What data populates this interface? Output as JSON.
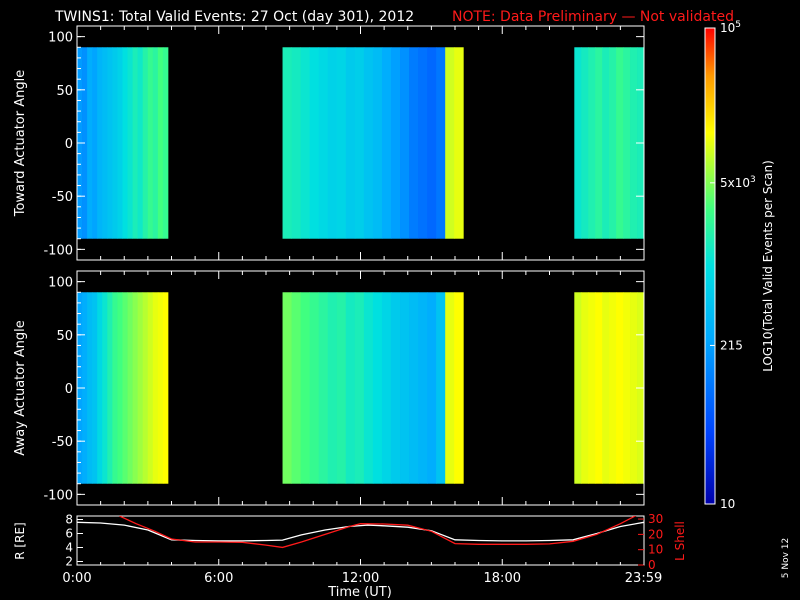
{
  "title": "TWINS1: Total Valid Events: 27 Oct (day 301), 2012",
  "note": "NOTE: Data Preliminary — Not validated",
  "date_stamp": "5 Nov 12",
  "colors": {
    "background": "#000000",
    "axis": "#ffffff",
    "note": "#ff1a1a",
    "l_shell_line": "#ff1a1a",
    "r_line": "#ffffff"
  },
  "colorbar": {
    "label": "LOG10(Total Valid Events per Scan)",
    "tick_labels": [
      "10",
      "215",
      "5x10^3",
      "10^5"
    ],
    "tick_values": [
      10,
      215,
      5000,
      100000
    ],
    "scale": "log",
    "colormap": "blue-cyan-green-yellow-orange-red",
    "range": [
      10,
      100000
    ]
  },
  "chart_data": [
    {
      "type": "heatmap",
      "ylabel": "Toward Actuator Angle",
      "ylim": [
        -110,
        110
      ],
      "y_tick_labels": [
        "100",
        "50",
        "0",
        "-50",
        "-100"
      ],
      "y_tick_values": [
        100,
        50,
        0,
        -50,
        -100
      ],
      "xlim": [
        0,
        24
      ],
      "data_y_range": [
        -90,
        90
      ],
      "log_level_scale": "0 = 10 events, 1 = 10^5 events (log scale)",
      "data_segments": [
        {
          "t_start": 0.0,
          "t_end": 3.85,
          "levels": [
            0.32,
            0.3,
            0.36,
            0.34,
            0.38,
            0.4,
            0.42,
            0.44,
            0.46,
            0.5,
            0.52,
            0.55,
            0.53,
            0.57,
            0.6,
            0.58,
            0.62,
            0.6
          ]
        },
        {
          "t_start": 8.7,
          "t_end": 16.35,
          "levels": [
            0.55,
            0.54,
            0.52,
            0.5,
            0.48,
            0.46,
            0.47,
            0.44,
            0.45,
            0.42,
            0.4,
            0.36,
            0.33,
            0.3,
            0.26,
            0.24,
            0.22,
            0.25,
            0.74,
            0.76
          ]
        },
        {
          "t_start": 21.05,
          "t_end": 24.0,
          "levels": [
            0.52,
            0.54,
            0.56,
            0.58,
            0.55,
            0.57,
            0.6,
            0.58,
            0.56,
            0.55
          ]
        }
      ],
      "gaps": [
        [
          3.85,
          8.7
        ],
        [
          16.35,
          21.05
        ]
      ]
    },
    {
      "type": "heatmap",
      "ylabel": "Away Actuator Angle",
      "ylim": [
        -110,
        110
      ],
      "y_tick_labels": [
        "100",
        "50",
        "0",
        "-50",
        "-100"
      ],
      "y_tick_values": [
        100,
        50,
        0,
        -50,
        -100
      ],
      "xlim": [
        0,
        24
      ],
      "data_y_range": [
        -90,
        90
      ],
      "log_level_scale": "0 = 10 events, 1 = 10^5 events (log scale)",
      "data_segments": [
        {
          "t_start": 0.0,
          "t_end": 3.85,
          "levels": [
            0.34,
            0.36,
            0.4,
            0.42,
            0.48,
            0.52,
            0.56,
            0.6,
            0.62,
            0.64,
            0.66,
            0.68,
            0.7,
            0.72,
            0.74,
            0.76,
            0.77,
            0.78
          ]
        },
        {
          "t_start": 8.7,
          "t_end": 16.35,
          "levels": [
            0.66,
            0.64,
            0.62,
            0.6,
            0.58,
            0.56,
            0.57,
            0.54,
            0.55,
            0.52,
            0.5,
            0.47,
            0.44,
            0.42,
            0.4,
            0.38,
            0.36,
            0.42,
            0.76,
            0.78
          ]
        },
        {
          "t_start": 21.05,
          "t_end": 24.0,
          "levels": [
            0.74,
            0.76,
            0.77,
            0.78,
            0.76,
            0.77,
            0.78,
            0.77,
            0.76,
            0.75
          ]
        }
      ],
      "gaps": [
        [
          3.85,
          8.7
        ],
        [
          16.35,
          21.05
        ]
      ]
    },
    {
      "type": "line",
      "xlabel": "Time (UT)",
      "x_tick_labels": [
        "0:00",
        "6:00",
        "12:00",
        "18:00",
        "23:59"
      ],
      "x_tick_values": [
        0,
        6,
        12,
        18,
        23.98
      ],
      "xlim": [
        0,
        24
      ],
      "left_axis": {
        "label": "R [RE]",
        "ylim": [
          1.5,
          8.5
        ],
        "tick_labels": [
          "2",
          "4",
          "6",
          "8"
        ],
        "tick_values": [
          2,
          4,
          6,
          8
        ]
      },
      "right_axis": {
        "label": "L Shell",
        "ylim": [
          0,
          32
        ],
        "tick_labels": [
          "0",
          "10",
          "20",
          "30"
        ],
        "tick_values": [
          0,
          10,
          20,
          30
        ]
      },
      "series": [
        {
          "name": "R",
          "axis": "left",
          "color": "#ffffff",
          "x": [
            0,
            1,
            2,
            3,
            4,
            5,
            6,
            7,
            8,
            8.7,
            9.5,
            10.5,
            11.5,
            12.3,
            13,
            14,
            15,
            16,
            17,
            18,
            19,
            20,
            21,
            22,
            23,
            24
          ],
          "y": [
            7.6,
            7.5,
            7.2,
            6.5,
            5.1,
            5.0,
            4.95,
            4.95,
            5.0,
            5.05,
            5.8,
            6.5,
            7.0,
            7.2,
            7.1,
            6.9,
            6.4,
            5.1,
            5.0,
            4.95,
            4.95,
            5.0,
            5.1,
            6.0,
            7.0,
            7.6
          ]
        },
        {
          "name": "L Shell",
          "axis": "right",
          "color": "#ff1a1a",
          "x": [
            1.8,
            2.5,
            3.3,
            4.0,
            5.0,
            6.0,
            7.0,
            8.0,
            8.7,
            9.5,
            10.5,
            11.5,
            12.0,
            13.0,
            14.0,
            15.0,
            16.0,
            17.0,
            18.0,
            19.0,
            20.0,
            21.0,
            22.0,
            23.0,
            24.0
          ],
          "y": [
            32,
            27,
            22,
            17,
            15,
            15,
            14.8,
            13,
            11.5,
            15,
            20,
            25,
            27,
            26.8,
            26,
            22,
            14,
            13.5,
            13.5,
            13.5,
            13.8,
            15.5,
            20,
            27,
            35
          ]
        }
      ]
    }
  ]
}
